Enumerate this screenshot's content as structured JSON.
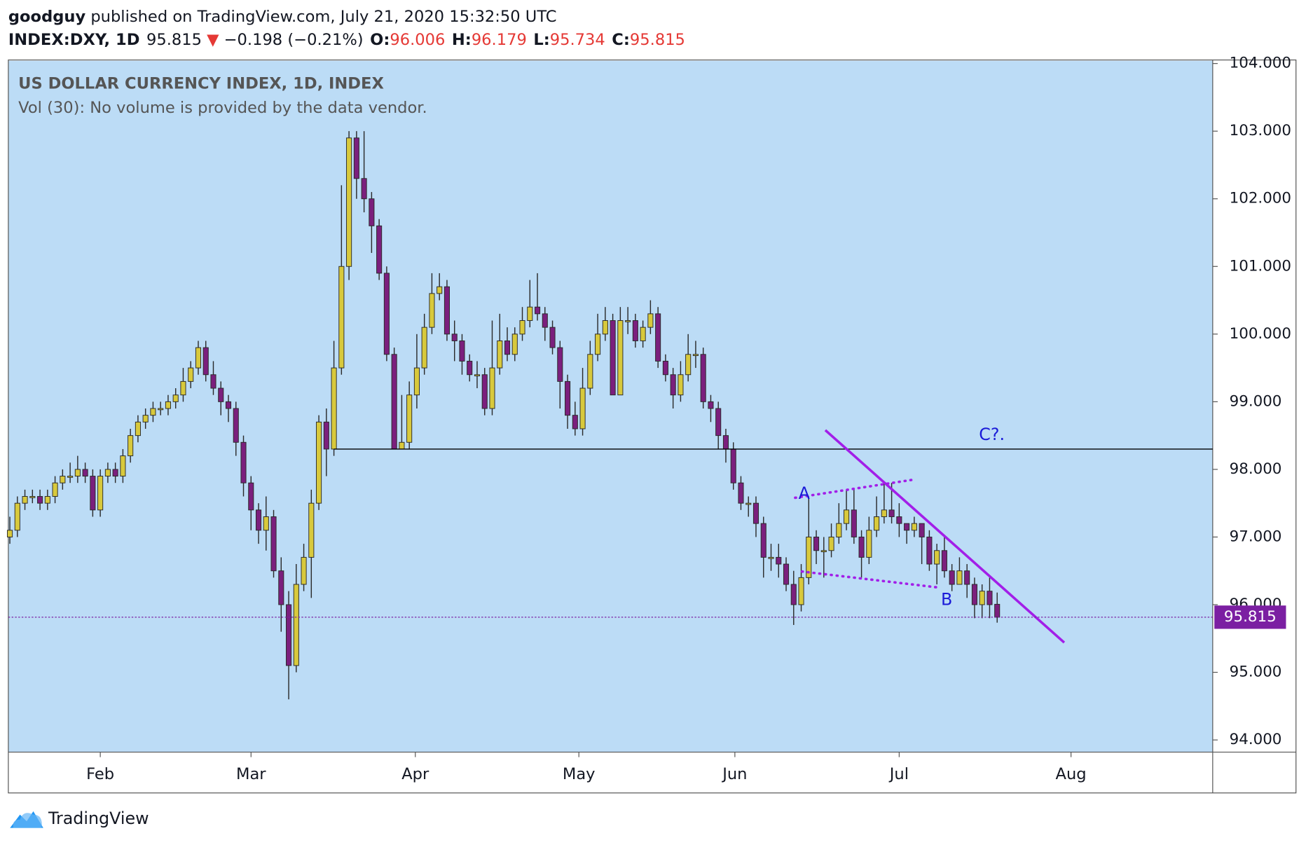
{
  "header": {
    "publisher": "goodguy",
    "published": "published on TradingView.com, July 21, 2020 15:32:50 UTC",
    "symbol": "INDEX:DXY, 1D",
    "arrow": "▼",
    "change": "−0.198 (−0.21%)",
    "o": "O:",
    "h": "H:",
    "l": "L:",
    "c": "C:"
  },
  "footer": {
    "brand": "TradingView"
  },
  "chart_data": {
    "type": "candlestick",
    "title": "US DOLLAR CURRENCY INDEX, 1D, INDEX",
    "subtitle": "Vol (30): No volume is provided by the data vendor.",
    "up_color": "#d8c93c",
    "down_color": "#7b1f7d",
    "background": "#bcdcf6",
    "grid": false,
    "open": [
      97.0,
      97.1,
      97.5,
      97.6,
      97.6,
      97.5,
      97.6,
      97.8,
      97.9,
      97.9,
      98.0,
      97.9,
      97.4,
      97.9,
      98.0,
      97.9,
      98.2,
      98.5,
      98.7,
      98.8,
      98.9,
      98.9,
      99.0,
      99.1,
      99.3,
      99.5,
      99.8,
      99.4,
      99.2,
      99.0,
      98.9,
      98.4,
      97.8,
      97.4,
      97.1,
      97.3,
      96.5,
      96.0,
      95.1,
      96.3,
      96.7,
      97.5,
      98.7,
      98.3,
      99.5,
      101.0,
      102.9,
      102.3,
      102.0,
      101.6,
      100.9,
      99.7,
      98.3,
      98.4,
      99.1,
      99.5,
      100.1,
      100.6,
      100.7,
      100.0,
      99.9,
      99.6,
      99.4,
      99.4,
      98.9,
      99.5,
      99.9,
      99.7,
      100.0,
      100.2,
      100.4,
      100.3,
      100.1,
      99.8,
      99.3,
      98.8,
      98.6,
      99.2,
      99.7,
      100.0,
      100.2,
      99.1,
      100.2,
      100.2,
      99.9,
      100.1,
      100.3,
      99.6,
      99.4,
      99.1,
      99.4,
      99.7,
      99.7,
      99.0,
      98.9,
      98.5,
      98.3,
      97.8,
      97.5,
      97.5,
      97.2,
      96.7,
      96.7,
      96.6,
      96.3,
      96.0,
      96.4,
      97.0,
      96.8,
      96.8,
      97.0,
      97.2,
      97.4,
      97.0,
      96.7,
      97.1,
      97.3,
      97.4,
      97.3,
      97.2,
      97.1,
      97.2,
      97.0,
      96.6,
      96.8,
      96.5,
      96.3,
      96.5,
      96.3,
      96.0,
      96.2,
      96.006
    ],
    "high": [
      97.3,
      97.6,
      97.7,
      97.7,
      97.7,
      97.7,
      97.9,
      98.0,
      98.1,
      98.2,
      98.1,
      98.0,
      98.0,
      98.1,
      98.1,
      98.3,
      98.6,
      98.8,
      98.9,
      99.0,
      99.0,
      99.1,
      99.2,
      99.5,
      99.6,
      99.9,
      99.9,
      99.6,
      99.3,
      99.1,
      99.0,
      98.5,
      97.9,
      97.5,
      97.6,
      97.4,
      96.7,
      96.2,
      96.6,
      96.9,
      97.7,
      98.8,
      98.9,
      99.9,
      102.2,
      103.0,
      103.0,
      103.0,
      102.1,
      101.7,
      101.0,
      99.8,
      99.1,
      99.3,
      100.0,
      100.3,
      100.9,
      100.9,
      100.8,
      100.2,
      100.0,
      99.7,
      99.6,
      99.5,
      100.2,
      100.3,
      100.1,
      100.1,
      100.4,
      100.8,
      100.9,
      100.4,
      100.2,
      99.9,
      99.4,
      99.0,
      99.5,
      99.9,
      100.3,
      100.4,
      100.3,
      100.4,
      100.4,
      100.3,
      100.2,
      100.5,
      100.4,
      99.7,
      99.5,
      99.6,
      100.0,
      99.9,
      99.8,
      99.1,
      99.0,
      98.6,
      98.4,
      97.9,
      97.6,
      97.6,
      97.3,
      96.9,
      96.9,
      96.7,
      96.5,
      96.6,
      97.6,
      97.1,
      97.0,
      97.2,
      97.5,
      97.7,
      97.7,
      97.1,
      97.3,
      97.6,
      97.8,
      97.8,
      97.5,
      97.2,
      97.3,
      97.2,
      97.1,
      96.9,
      97.0,
      96.6,
      96.7,
      96.6,
      96.4,
      96.3,
      96.4,
      96.179
    ],
    "low": [
      96.9,
      97.0,
      97.4,
      97.5,
      97.4,
      97.4,
      97.5,
      97.7,
      97.8,
      97.8,
      97.8,
      97.3,
      97.3,
      97.8,
      97.8,
      97.8,
      98.1,
      98.4,
      98.6,
      98.7,
      98.8,
      98.8,
      98.9,
      99.0,
      99.2,
      99.4,
      99.3,
      99.1,
      98.8,
      98.7,
      98.2,
      97.6,
      97.1,
      96.9,
      96.8,
      96.4,
      95.6,
      94.6,
      95.0,
      96.2,
      96.1,
      97.4,
      97.9,
      98.2,
      99.4,
      100.8,
      102.0,
      101.8,
      101.2,
      100.8,
      99.6,
      98.3,
      98.3,
      98.3,
      98.9,
      99.4,
      100.0,
      100.5,
      99.9,
      99.6,
      99.4,
      99.3,
      99.2,
      98.8,
      98.8,
      99.4,
      99.6,
      99.6,
      99.9,
      100.1,
      100.2,
      99.9,
      99.7,
      98.9,
      98.6,
      98.5,
      98.5,
      99.1,
      99.6,
      99.9,
      99.1,
      99.1,
      100.0,
      99.8,
      99.8,
      100.0,
      99.5,
      99.3,
      98.9,
      99.0,
      99.3,
      99.5,
      98.9,
      98.7,
      98.3,
      98.1,
      97.7,
      97.4,
      97.3,
      97.0,
      96.4,
      96.5,
      96.4,
      96.2,
      95.7,
      95.9,
      96.3,
      96.6,
      96.4,
      96.7,
      96.9,
      97.1,
      96.9,
      96.4,
      96.6,
      97.0,
      97.2,
      97.2,
      97.0,
      96.9,
      97.0,
      96.6,
      96.5,
      96.3,
      96.4,
      96.2,
      96.3,
      96.1,
      95.8,
      95.8,
      95.8,
      95.734
    ],
    "close": [
      97.1,
      97.5,
      97.6,
      97.6,
      97.5,
      97.6,
      97.8,
      97.9,
      97.9,
      98.0,
      97.9,
      97.4,
      97.9,
      98.0,
      97.9,
      98.2,
      98.5,
      98.7,
      98.8,
      98.9,
      98.9,
      99.0,
      99.1,
      99.3,
      99.5,
      99.8,
      99.4,
      99.2,
      99.0,
      98.9,
      98.4,
      97.8,
      97.4,
      97.1,
      97.3,
      96.5,
      96.0,
      95.1,
      96.3,
      96.7,
      97.5,
      98.7,
      98.3,
      99.5,
      101.0,
      102.9,
      102.3,
      102.0,
      101.6,
      100.9,
      99.7,
      98.3,
      98.4,
      99.1,
      99.5,
      100.1,
      100.6,
      100.7,
      100.0,
      99.9,
      99.6,
      99.4,
      99.4,
      98.9,
      99.5,
      99.9,
      99.7,
      100.0,
      100.2,
      100.4,
      100.3,
      100.1,
      99.8,
      99.3,
      98.8,
      98.6,
      99.2,
      99.7,
      100.0,
      100.2,
      99.1,
      100.2,
      100.2,
      99.9,
      100.1,
      100.3,
      99.6,
      99.4,
      99.1,
      99.4,
      99.7,
      99.7,
      99.0,
      98.9,
      98.5,
      98.3,
      97.8,
      97.5,
      97.5,
      97.2,
      96.7,
      96.7,
      96.6,
      96.3,
      96.0,
      96.4,
      97.0,
      96.8,
      96.8,
      97.0,
      97.2,
      97.4,
      97.0,
      96.7,
      97.1,
      97.3,
      97.4,
      97.3,
      97.2,
      97.1,
      97.2,
      97.0,
      96.6,
      96.8,
      96.5,
      96.3,
      96.5,
      96.3,
      96.0,
      96.2,
      96.0,
      95.815
    ],
    "xlim": [
      -0.2,
      159.6
    ],
    "xticks": [
      {
        "value": 12,
        "label": "Feb"
      },
      {
        "value": 32,
        "label": "Mar"
      },
      {
        "value": 53.8,
        "label": "Apr"
      },
      {
        "value": 75.5,
        "label": "May"
      },
      {
        "value": 96.2,
        "label": "Jun"
      },
      {
        "value": 118,
        "label": "Jul"
      },
      {
        "value": 140.8,
        "label": "Aug"
      }
    ],
    "ylim": [
      93.82,
      104.04
    ],
    "yticks": [
      {
        "value": 94,
        "label": "94.000"
      },
      {
        "value": 95,
        "label": "95.000"
      },
      {
        "value": 96,
        "label": "96.000"
      },
      {
        "value": 97,
        "label": "97.000"
      },
      {
        "value": 98,
        "label": "98.000"
      },
      {
        "value": 99,
        "label": "99.000"
      },
      {
        "value": 100,
        "label": "100.000"
      },
      {
        "value": 101,
        "label": "101.000"
      },
      {
        "value": 102,
        "label": "102.000"
      },
      {
        "value": 103,
        "label": "103.000"
      },
      {
        "value": 104,
        "label": "104.000"
      }
    ],
    "last_price_color": "#7b1fa2",
    "lines": [
      {
        "from": [
          43,
          98.3
        ],
        "to": [
          159.6,
          98.3
        ],
        "color": "#000000",
        "style": "solid",
        "width": 1.2
      },
      {
        "from": [
          108.2,
          98.58
        ],
        "to": [
          139.9,
          95.44
        ],
        "color": "#a21fe8",
        "style": "solid",
        "width": 3
      },
      {
        "from": [
          104.2,
          97.58
        ],
        "to": [
          120,
          97.85
        ],
        "color": "#a21fe8",
        "style": "dotted",
        "width": 3
      },
      {
        "from": [
          105.1,
          96.49
        ],
        "to": [
          123.5,
          96.25
        ],
        "color": "#a21fe8",
        "style": "dotted",
        "width": 3
      }
    ],
    "labels": [
      {
        "text": "A",
        "x": 105.4,
        "y": 97.63,
        "color": "#1a1ad8"
      },
      {
        "text": "B",
        "x": 124.3,
        "y": 96.06,
        "color": "#1a1ad8"
      },
      {
        "text": "C?.",
        "x": 130.3,
        "y": 98.5,
        "color": "#1a1ad8"
      }
    ]
  }
}
